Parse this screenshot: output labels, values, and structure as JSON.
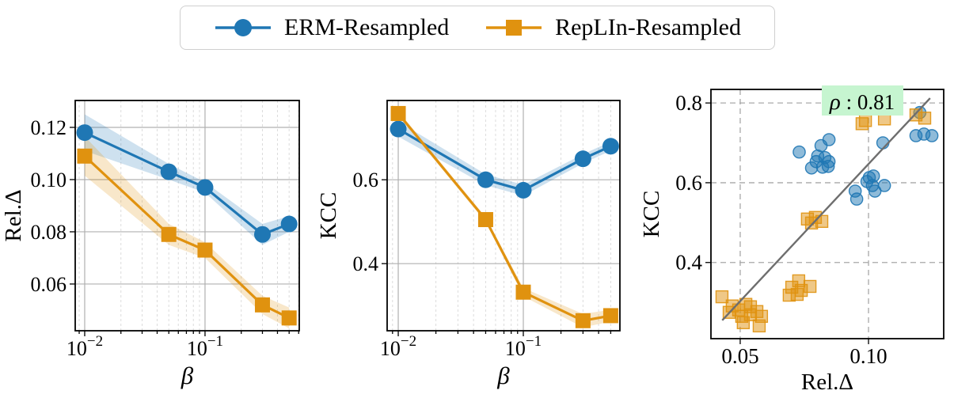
{
  "colors": {
    "erm_blue": "#1f77b4",
    "replin_orange": "#e0920f",
    "grid_major": "#b0b0b0",
    "grid_minor": "#dcdcdc",
    "scatter_grid": "#a8a8a8",
    "fit_line": "#6e6e6e",
    "annotation_bg": "#c6f5d0",
    "spine": "#000000",
    "legend_border": "#cfcfcf"
  },
  "legend": {
    "items": [
      {
        "label": "ERM-Resampled",
        "marker": "circle",
        "color_key": "erm_blue"
      },
      {
        "label": "RepLIn-Resampled",
        "marker": "square",
        "color_key": "replin_orange"
      }
    ]
  },
  "chart_data": [
    {
      "id": "rel-delta-vs-beta",
      "type": "line",
      "xscale": "log",
      "xlabel": "β",
      "xlabel_italic": true,
      "ylabel": "Rel.Δ",
      "xlim": [
        0.00834,
        0.607
      ],
      "ylim": [
        0.0421,
        0.1303
      ],
      "xticks": [
        {
          "value": 0.01,
          "base": "10",
          "exp": "−2"
        },
        {
          "value": 0.1,
          "base": "10",
          "exp": "−1"
        }
      ],
      "xminor": [
        0.009,
        0.02,
        0.03,
        0.04,
        0.05,
        0.06,
        0.07,
        0.08,
        0.09,
        0.2,
        0.3,
        0.4,
        0.5,
        0.6
      ],
      "yticks": [
        {
          "value": 0.06,
          "label": "0.06"
        },
        {
          "value": 0.08,
          "label": "0.08"
        },
        {
          "value": 0.1,
          "label": "0.10"
        },
        {
          "value": 0.12,
          "label": "0.12"
        }
      ],
      "x": [
        0.01,
        0.05,
        0.1,
        0.3,
        0.5
      ],
      "series": [
        {
          "name": "ERM-Resampled",
          "marker": "circle",
          "color_key": "erm_blue",
          "values": [
            0.118,
            0.103,
            0.097,
            0.079,
            0.083
          ],
          "band_halfwidth": [
            0.007,
            0.003,
            0.002,
            0.004,
            0.003
          ]
        },
        {
          "name": "RepLIn-Resampled",
          "marker": "square",
          "color_key": "replin_orange",
          "values": [
            0.109,
            0.079,
            0.073,
            0.052,
            0.047
          ],
          "band_halfwidth": [
            0.0075,
            0.004,
            0.003,
            0.0035,
            0.004
          ]
        }
      ]
    },
    {
      "id": "kcc-vs-beta",
      "type": "line",
      "xscale": "log",
      "xlabel": "β",
      "xlabel_italic": true,
      "ylabel": "KCC",
      "xlim": [
        0.00815,
        0.592
      ],
      "ylim": [
        0.24,
        0.789
      ],
      "xticks": [
        {
          "value": 0.01,
          "base": "10",
          "exp": "−2"
        },
        {
          "value": 0.1,
          "base": "10",
          "exp": "−1"
        }
      ],
      "xminor": [
        0.009,
        0.02,
        0.03,
        0.04,
        0.05,
        0.06,
        0.07,
        0.08,
        0.09,
        0.2,
        0.3,
        0.4,
        0.5,
        0.6
      ],
      "yticks": [
        {
          "value": 0.4,
          "label": "0.4"
        },
        {
          "value": 0.6,
          "label": "0.6"
        }
      ],
      "x": [
        0.01,
        0.05,
        0.1,
        0.3,
        0.5
      ],
      "series": [
        {
          "name": "ERM-Resampled",
          "marker": "circle",
          "color_key": "erm_blue",
          "values": [
            0.721,
            0.6,
            0.575,
            0.65,
            0.68
          ],
          "band_halfwidth": [
            0.018,
            0.013,
            0.013,
            0.011,
            0.011
          ]
        },
        {
          "name": "RepLIn-Resampled",
          "marker": "square",
          "color_key": "replin_orange",
          "values": [
            0.758,
            0.505,
            0.332,
            0.264,
            0.276
          ],
          "band_halfwidth": [
            0.006,
            0.006,
            0.01,
            0.016,
            0.014
          ]
        }
      ]
    },
    {
      "id": "kcc-vs-rel-delta",
      "type": "scatter",
      "xscale": "linear",
      "xlabel": "Rel.Δ",
      "xlabel_italic": false,
      "ylabel": "KCC",
      "xlim": [
        0.0386,
        0.1293
      ],
      "ylim": [
        0.209,
        0.834
      ],
      "xticks": [
        {
          "value": 0.05,
          "label": "0.05"
        },
        {
          "value": 0.1,
          "label": "0.10"
        }
      ],
      "yticks": [
        {
          "value": 0.4,
          "label": "0.4"
        },
        {
          "value": 0.6,
          "label": "0.6"
        },
        {
          "value": 0.8,
          "label": "0.8"
        }
      ],
      "fit_line": {
        "x": [
          0.043,
          0.124
        ],
        "y": [
          0.255,
          0.812
        ]
      },
      "annotation": {
        "symbol": "ρ",
        "text": " : 0.81",
        "full": "ρ : 0.81"
      },
      "series": [
        {
          "name": "ERM-Resampled",
          "marker": "circle",
          "color_key": "erm_blue",
          "points": [
            [
              0.073,
              0.677
            ],
            [
              0.0815,
              0.693
            ],
            [
              0.0846,
              0.708
            ],
            [
              0.0802,
              0.667
            ],
            [
              0.083,
              0.663
            ],
            [
              0.0796,
              0.653
            ],
            [
              0.0846,
              0.653
            ],
            [
              0.0778,
              0.637
            ],
            [
              0.0821,
              0.639
            ],
            [
              0.0843,
              0.641
            ],
            [
              0.0948,
              0.579
            ],
            [
              0.0954,
              0.559
            ],
            [
              0.0994,
              0.603
            ],
            [
              0.1003,
              0.613
            ],
            [
              0.1019,
              0.617
            ],
            [
              0.1015,
              0.593
            ],
            [
              0.1062,
              0.593
            ],
            [
              0.1025,
              0.579
            ],
            [
              0.1056,
              0.7
            ],
            [
              0.1185,
              0.718
            ],
            [
              0.1216,
              0.722
            ],
            [
              0.1247,
              0.718
            ],
            [
              0.12,
              0.776
            ]
          ]
        },
        {
          "name": "RepLIn-Resampled",
          "marker": "square",
          "color_key": "replin_orange",
          "points": [
            [
              0.0429,
              0.314
            ],
            [
              0.0469,
              0.291
            ],
            [
              0.0457,
              0.275
            ],
            [
              0.0494,
              0.281
            ],
            [
              0.0522,
              0.295
            ],
            [
              0.054,
              0.289
            ],
            [
              0.0506,
              0.265
            ],
            [
              0.054,
              0.269
            ],
            [
              0.0565,
              0.277
            ],
            [
              0.0512,
              0.249
            ],
            [
              0.0574,
              0.241
            ],
            [
              0.0583,
              0.265
            ],
            [
              0.0691,
              0.318
            ],
            [
              0.0701,
              0.338
            ],
            [
              0.0722,
              0.32
            ],
            [
              0.0728,
              0.354
            ],
            [
              0.0738,
              0.33
            ],
            [
              0.0772,
              0.34
            ],
            [
              0.0762,
              0.509
            ],
            [
              0.0778,
              0.499
            ],
            [
              0.0793,
              0.513
            ],
            [
              0.0818,
              0.503
            ],
            [
              0.0975,
              0.748
            ],
            [
              0.0988,
              0.756
            ],
            [
              0.1062,
              0.76
            ],
            [
              0.1185,
              0.77
            ],
            [
              0.1219,
              0.762
            ]
          ]
        }
      ]
    }
  ]
}
